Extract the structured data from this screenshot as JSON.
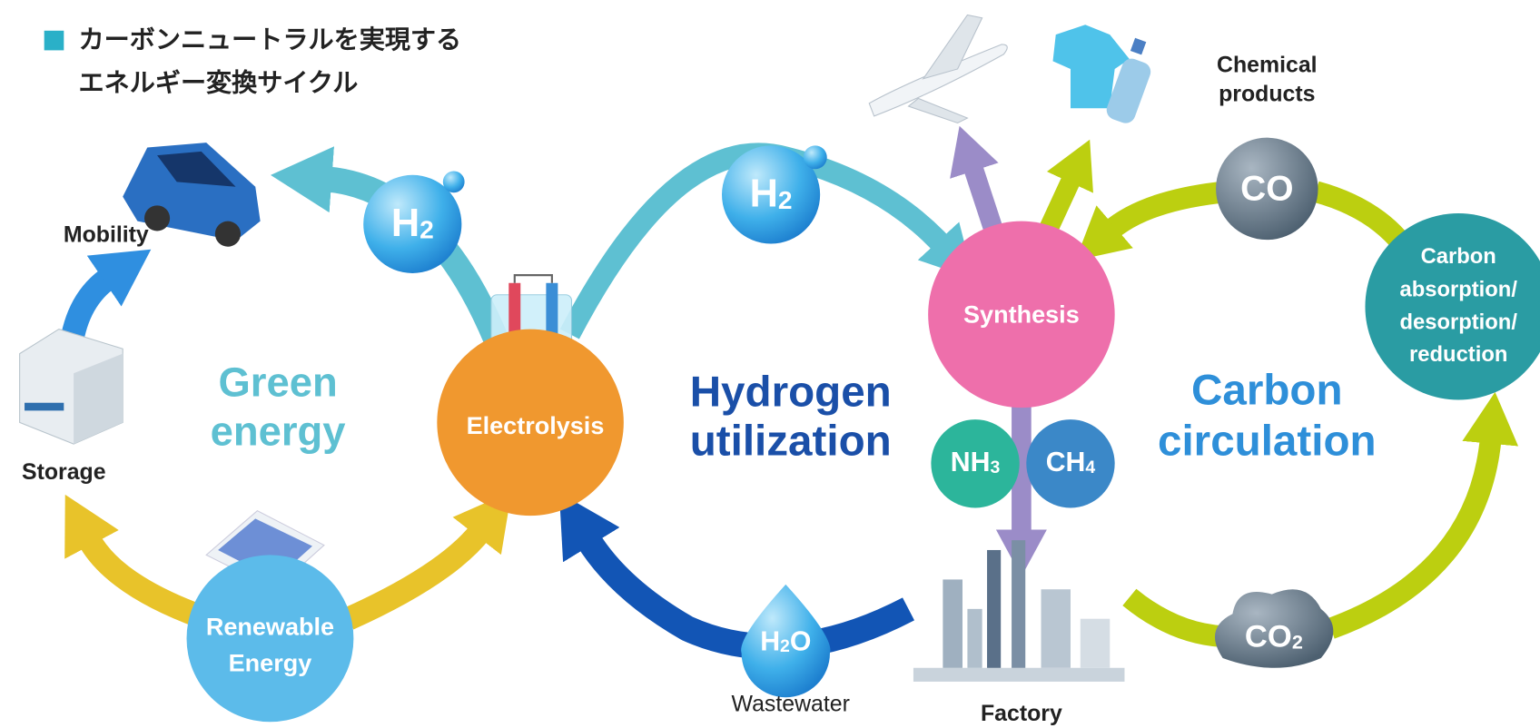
{
  "title": [
    "カーボンニュートラルを実現する",
    "エネルギー変換サイクル"
  ],
  "cycles": {
    "green": [
      "Green",
      "energy"
    ],
    "hydrogen": [
      "Hydrogen",
      "utilization"
    ],
    "carbon": [
      "Carbon",
      "circulation"
    ]
  },
  "nodes": {
    "mobility": "Mobility",
    "storage": "Storage",
    "renewable": [
      "Renewable",
      "Energy"
    ],
    "electrolysis": "Electrolysis",
    "synthesis": "Synthesis",
    "carbon_process": [
      "Carbon",
      "absorption/",
      "desorption/",
      "reduction"
    ],
    "chemical": [
      "Chemical",
      "products"
    ],
    "factory": "Factory",
    "wastewater": "Wastewater"
  },
  "molecules": {
    "h2_left": [
      "H",
      "2"
    ],
    "h2_mid": [
      "H",
      "2"
    ],
    "h2o": [
      "H",
      "2",
      "O"
    ],
    "nh3": [
      "NH",
      "3"
    ],
    "ch4": [
      "CH",
      "4"
    ],
    "co": "CO",
    "co2": [
      "CO",
      "2"
    ]
  }
}
